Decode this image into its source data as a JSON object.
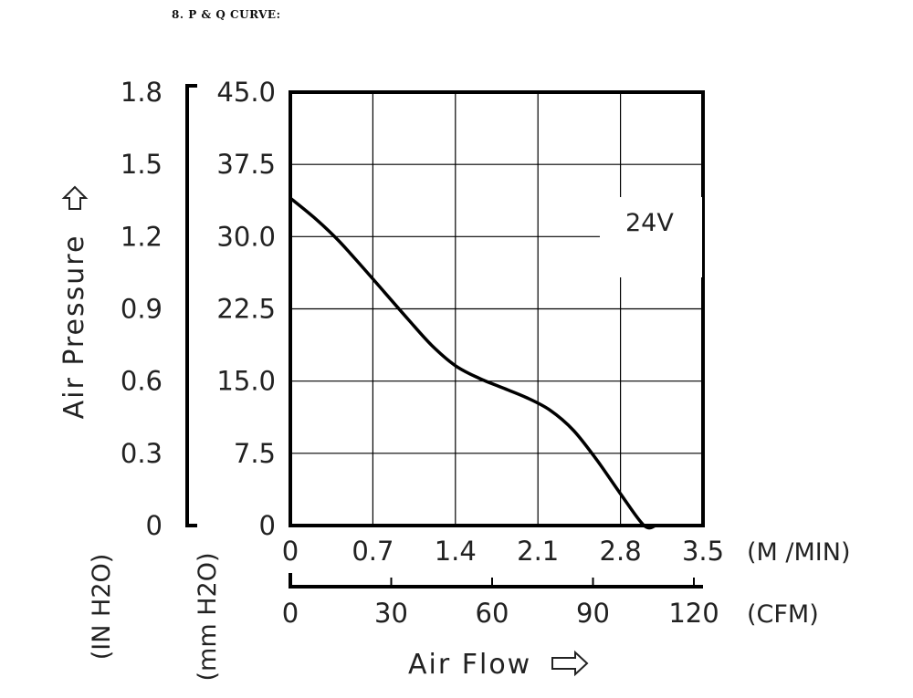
{
  "section_title": "8. P & Q CURVE:",
  "chart_data": {
    "type": "line",
    "title": "",
    "series": [
      {
        "name": "24V",
        "color": "#000000",
        "x": [
          0,
          0.2,
          0.4,
          0.6,
          0.8,
          1.0,
          1.2,
          1.4,
          1.6,
          1.8,
          2.0,
          2.2,
          2.4,
          2.6,
          2.8,
          3.0,
          3.1
        ],
        "y": [
          34.0,
          32.0,
          29.7,
          27.0,
          24.2,
          21.4,
          18.7,
          16.6,
          15.3,
          14.3,
          13.3,
          12.0,
          9.9,
          6.8,
          3.3,
          0.0,
          0.0
        ]
      }
    ],
    "y_mm": {
      "label": "(mm H2O)",
      "ticks": [
        "0",
        "7.5",
        "15.0",
        "22.5",
        "30.0",
        "37.5",
        "45.0"
      ],
      "ylim": [
        0,
        45
      ]
    },
    "y_in": {
      "label": "(IN H2O)",
      "ticks": [
        "0",
        "0.3",
        "0.6",
        "0.9",
        "1.2",
        "1.5",
        "1.8"
      ]
    },
    "x_mmin": {
      "label": "(M /MIN)",
      "ticks": [
        "0",
        "0.7",
        "1.4",
        "2.1",
        "2.8",
        "3.5"
      ],
      "xlim": [
        0,
        3.5
      ]
    },
    "x_cfm": {
      "label": "(CFM)",
      "ticks": [
        "0",
        "30",
        "60",
        "90",
        "120"
      ]
    },
    "ylabel": "Air Pressure",
    "xlabel": "Air Flow",
    "grid": true,
    "grid_x": [
      0.7,
      1.4,
      2.1,
      2.8
    ],
    "grid_y": [
      7.5,
      15.0,
      22.5,
      30.0,
      37.5
    ],
    "series_label_position": "top-right"
  }
}
